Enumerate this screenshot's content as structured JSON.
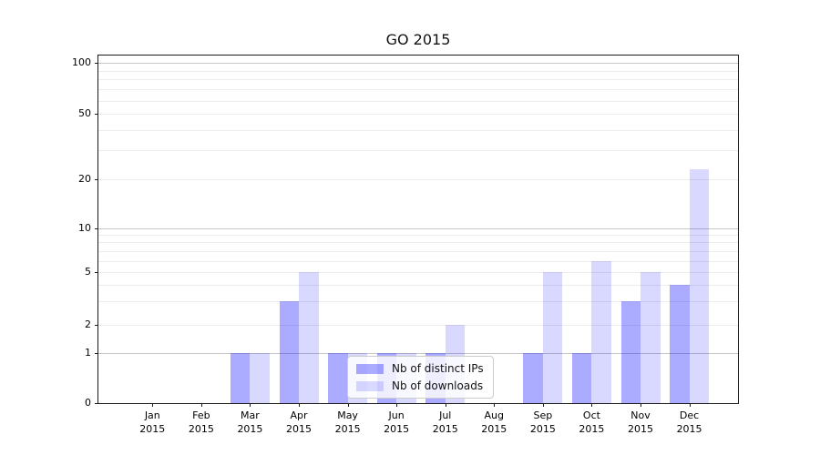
{
  "title": "GO 2015",
  "colors": {
    "distinct_ips": "rgba(0,0,255,0.33)",
    "downloads": "rgba(0,0,255,0.15)",
    "grid_major": "#c6c6c6",
    "grid_minor": "#ececec",
    "spine": "#1a1a1a",
    "legend_bg": "rgba(255,255,255,0.8)",
    "legend_border": "#cccccc"
  },
  "y_axis": {
    "tick_labels": [
      "0",
      "1",
      "2",
      "5",
      "10",
      "20",
      "50",
      "100"
    ],
    "tick_values": [
      0,
      1,
      2,
      5,
      10,
      20,
      50,
      100
    ],
    "grid_major_values": [
      1,
      10,
      100
    ],
    "grid_minor_values": [
      2,
      3,
      4,
      5,
      6,
      7,
      8,
      9,
      20,
      30,
      40,
      50,
      60,
      70,
      80,
      90
    ]
  },
  "x_axis": {
    "months": [
      {
        "month": "Jan",
        "year": "2015"
      },
      {
        "month": "Feb",
        "year": "2015"
      },
      {
        "month": "Mar",
        "year": "2015"
      },
      {
        "month": "Apr",
        "year": "2015"
      },
      {
        "month": "May",
        "year": "2015"
      },
      {
        "month": "Jun",
        "year": "2015"
      },
      {
        "month": "Jul",
        "year": "2015"
      },
      {
        "month": "Aug",
        "year": "2015"
      },
      {
        "month": "Sep",
        "year": "2015"
      },
      {
        "month": "Oct",
        "year": "2015"
      },
      {
        "month": "Nov",
        "year": "2015"
      },
      {
        "month": "Dec",
        "year": "2015"
      }
    ]
  },
  "chart_data": {
    "type": "bar",
    "title": "GO 2015",
    "categories": [
      "Jan 2015",
      "Feb 2015",
      "Mar 2015",
      "Apr 2015",
      "May 2015",
      "Jun 2015",
      "Jul 2015",
      "Aug 2015",
      "Sep 2015",
      "Oct 2015",
      "Nov 2015",
      "Dec 2015"
    ],
    "series": [
      {
        "name": "Nb of distinct IPs",
        "values": [
          0,
          0,
          1,
          3,
          1,
          1,
          1,
          0,
          1,
          1,
          3,
          4
        ]
      },
      {
        "name": "Nb of downloads",
        "values": [
          0,
          0,
          1,
          5,
          1,
          1,
          2,
          0,
          5,
          6,
          5,
          23
        ]
      }
    ],
    "xlabel": "",
    "ylabel": "",
    "yticks": [
      0,
      1,
      2,
      5,
      10,
      20,
      50,
      100
    ],
    "yscale": "symlog",
    "ylim": [
      0,
      112
    ],
    "grid": true,
    "legend_position": "lower center inside"
  }
}
